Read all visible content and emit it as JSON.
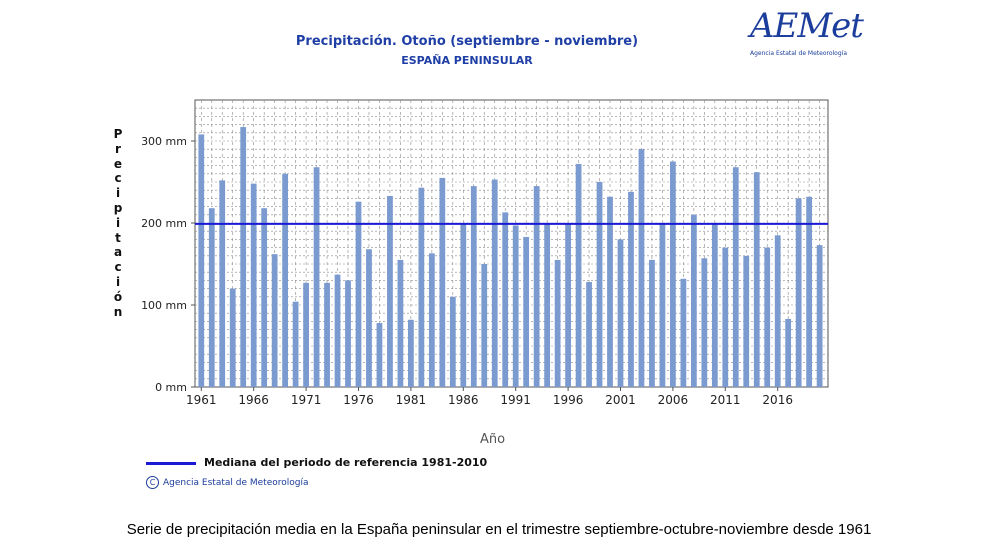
{
  "header": {
    "title": "Precipitación. Otoño (septiembre - noviembre)",
    "subtitle": "ESPAÑA PENINSULAR"
  },
  "logo": {
    "name": "AEMet",
    "subtitle": "Agencia Estatal de Meteorología"
  },
  "legend": {
    "median_label": "Mediana del periodo de referencia 1981-2010"
  },
  "credit": "Agencia Estatal de Meteorología",
  "caption": "Serie de precipitación media en la España peninsular en el trimestre septiembre-octubre-noviembre desde 1961",
  "chart_data": {
    "type": "bar",
    "title": "Precipitación. Otoño (septiembre - noviembre)",
    "subtitle": "ESPAÑA PENINSULAR",
    "xlabel": "Año",
    "ylabel": "Precipitación",
    "ylim": [
      0,
      350
    ],
    "yticks": [
      0,
      100,
      200,
      300
    ],
    "ytick_labels": [
      "0 mm",
      "100 mm",
      "200 mm",
      "300 mm"
    ],
    "xtick_labels": [
      "1961",
      "1966",
      "1971",
      "1976",
      "1981",
      "1986",
      "1991",
      "1996",
      "2001",
      "2006",
      "2011",
      "2016"
    ],
    "grid": true,
    "median": 199,
    "colors": {
      "bar": "#7a9ad0",
      "median": "#1a1ad6",
      "title": "#1f3fa6"
    },
    "x": [
      1961,
      1962,
      1963,
      1964,
      1965,
      1966,
      1967,
      1968,
      1969,
      1970,
      1971,
      1972,
      1973,
      1974,
      1975,
      1976,
      1977,
      1978,
      1979,
      1980,
      1981,
      1982,
      1983,
      1984,
      1985,
      1986,
      1987,
      1988,
      1989,
      1990,
      1991,
      1992,
      1993,
      1994,
      1995,
      1996,
      1997,
      1998,
      1999,
      2000,
      2001,
      2002,
      2003,
      2004,
      2005,
      2006,
      2007,
      2008,
      2009,
      2010,
      2011,
      2012,
      2013,
      2014,
      2015,
      2016,
      2017,
      2018,
      2019,
      2020
    ],
    "values": [
      308,
      218,
      252,
      120,
      317,
      248,
      218,
      162,
      260,
      104,
      127,
      268,
      127,
      137,
      130,
      226,
      168,
      78,
      233,
      155,
      82,
      243,
      163,
      255,
      110,
      200,
      245,
      150,
      253,
      213,
      197,
      183,
      245,
      200,
      155,
      200,
      272,
      128,
      250,
      232,
      180,
      238,
      290,
      155,
      200,
      275,
      132,
      210,
      157,
      200,
      170,
      268,
      160,
      262,
      170,
      185,
      83,
      230,
      232,
      173
    ]
  }
}
